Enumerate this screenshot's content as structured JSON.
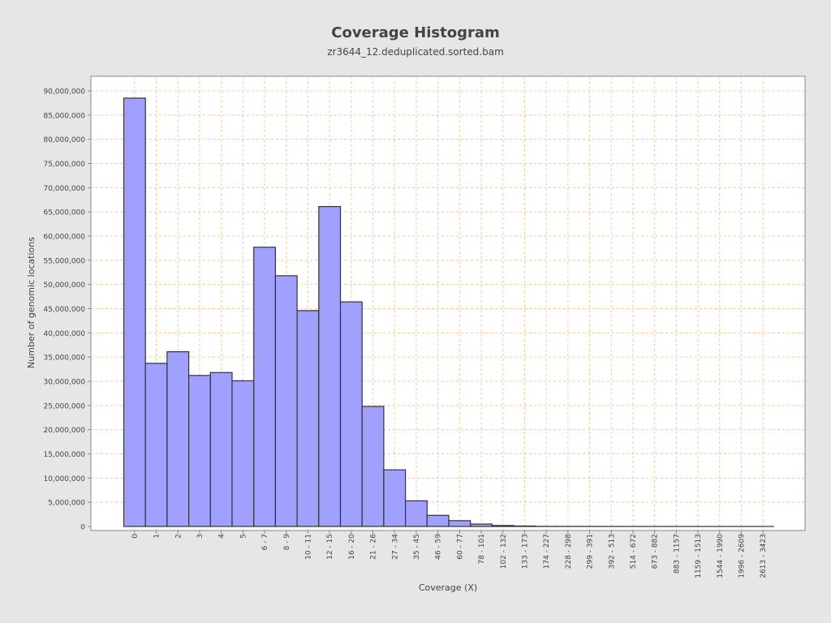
{
  "chart_data": {
    "type": "bar",
    "title": "Coverage Histogram",
    "subtitle": "zr3644_12.deduplicated.sorted.bam",
    "xlabel": "Coverage (X)",
    "ylabel": "Number of genomic locations",
    "ylim": [
      0,
      93000000
    ],
    "grid": true,
    "legend": "none",
    "bar_color": "#a0a0ff",
    "bar_edge_color": "#333333",
    "grid_color": "#f0c8a0",
    "plot_background": "#ffffff",
    "yticks": [
      {
        "value": 0,
        "label": "0"
      },
      {
        "value": 5000000,
        "label": "5,000,000"
      },
      {
        "value": 10000000,
        "label": "10,000,000"
      },
      {
        "value": 15000000,
        "label": "15,000,000"
      },
      {
        "value": 20000000,
        "label": "20,000,000"
      },
      {
        "value": 25000000,
        "label": "25,000,000"
      },
      {
        "value": 30000000,
        "label": "30,000,000"
      },
      {
        "value": 35000000,
        "label": "35,000,000"
      },
      {
        "value": 40000000,
        "label": "40,000,000"
      },
      {
        "value": 45000000,
        "label": "45,000,000"
      },
      {
        "value": 50000000,
        "label": "50,000,000"
      },
      {
        "value": 55000000,
        "label": "55,000,000"
      },
      {
        "value": 60000000,
        "label": "60,000,000"
      },
      {
        "value": 65000000,
        "label": "65,000,000"
      },
      {
        "value": 70000000,
        "label": "70,000,000"
      },
      {
        "value": 75000000,
        "label": "75,000,000"
      },
      {
        "value": 80000000,
        "label": "80,000,000"
      },
      {
        "value": 85000000,
        "label": "85,000,000"
      },
      {
        "value": 90000000,
        "label": "90,000,000"
      }
    ],
    "categories": [
      "0",
      "1",
      "2",
      "3",
      "4",
      "5",
      "6 - 7",
      "8 - 9",
      "10 - 11",
      "12 - 15",
      "16 - 20",
      "21 - 26",
      "27 - 34",
      "35 - 45",
      "46 - 59",
      "60 - 77",
      "78 - 101",
      "102 - 132",
      "133 - 173",
      "174 - 227",
      "228 - 298",
      "299 - 391",
      "392 - 513",
      "514 - 672",
      "673 - 882",
      "883 - 1157",
      "1159 - 1513",
      "1544 - 1990",
      "1996 - 2609",
      "2613 - 3423"
    ],
    "values": [
      88500000,
      33700000,
      36100000,
      31200000,
      31800000,
      30100000,
      57700000,
      51800000,
      44600000,
      66100000,
      46400000,
      24800000,
      11700000,
      5300000,
      2300000,
      1200000,
      500000,
      200000,
      100000,
      30000,
      20000,
      15000,
      10000,
      8000,
      6000,
      5000,
      4000,
      3000,
      2000,
      1000
    ]
  }
}
